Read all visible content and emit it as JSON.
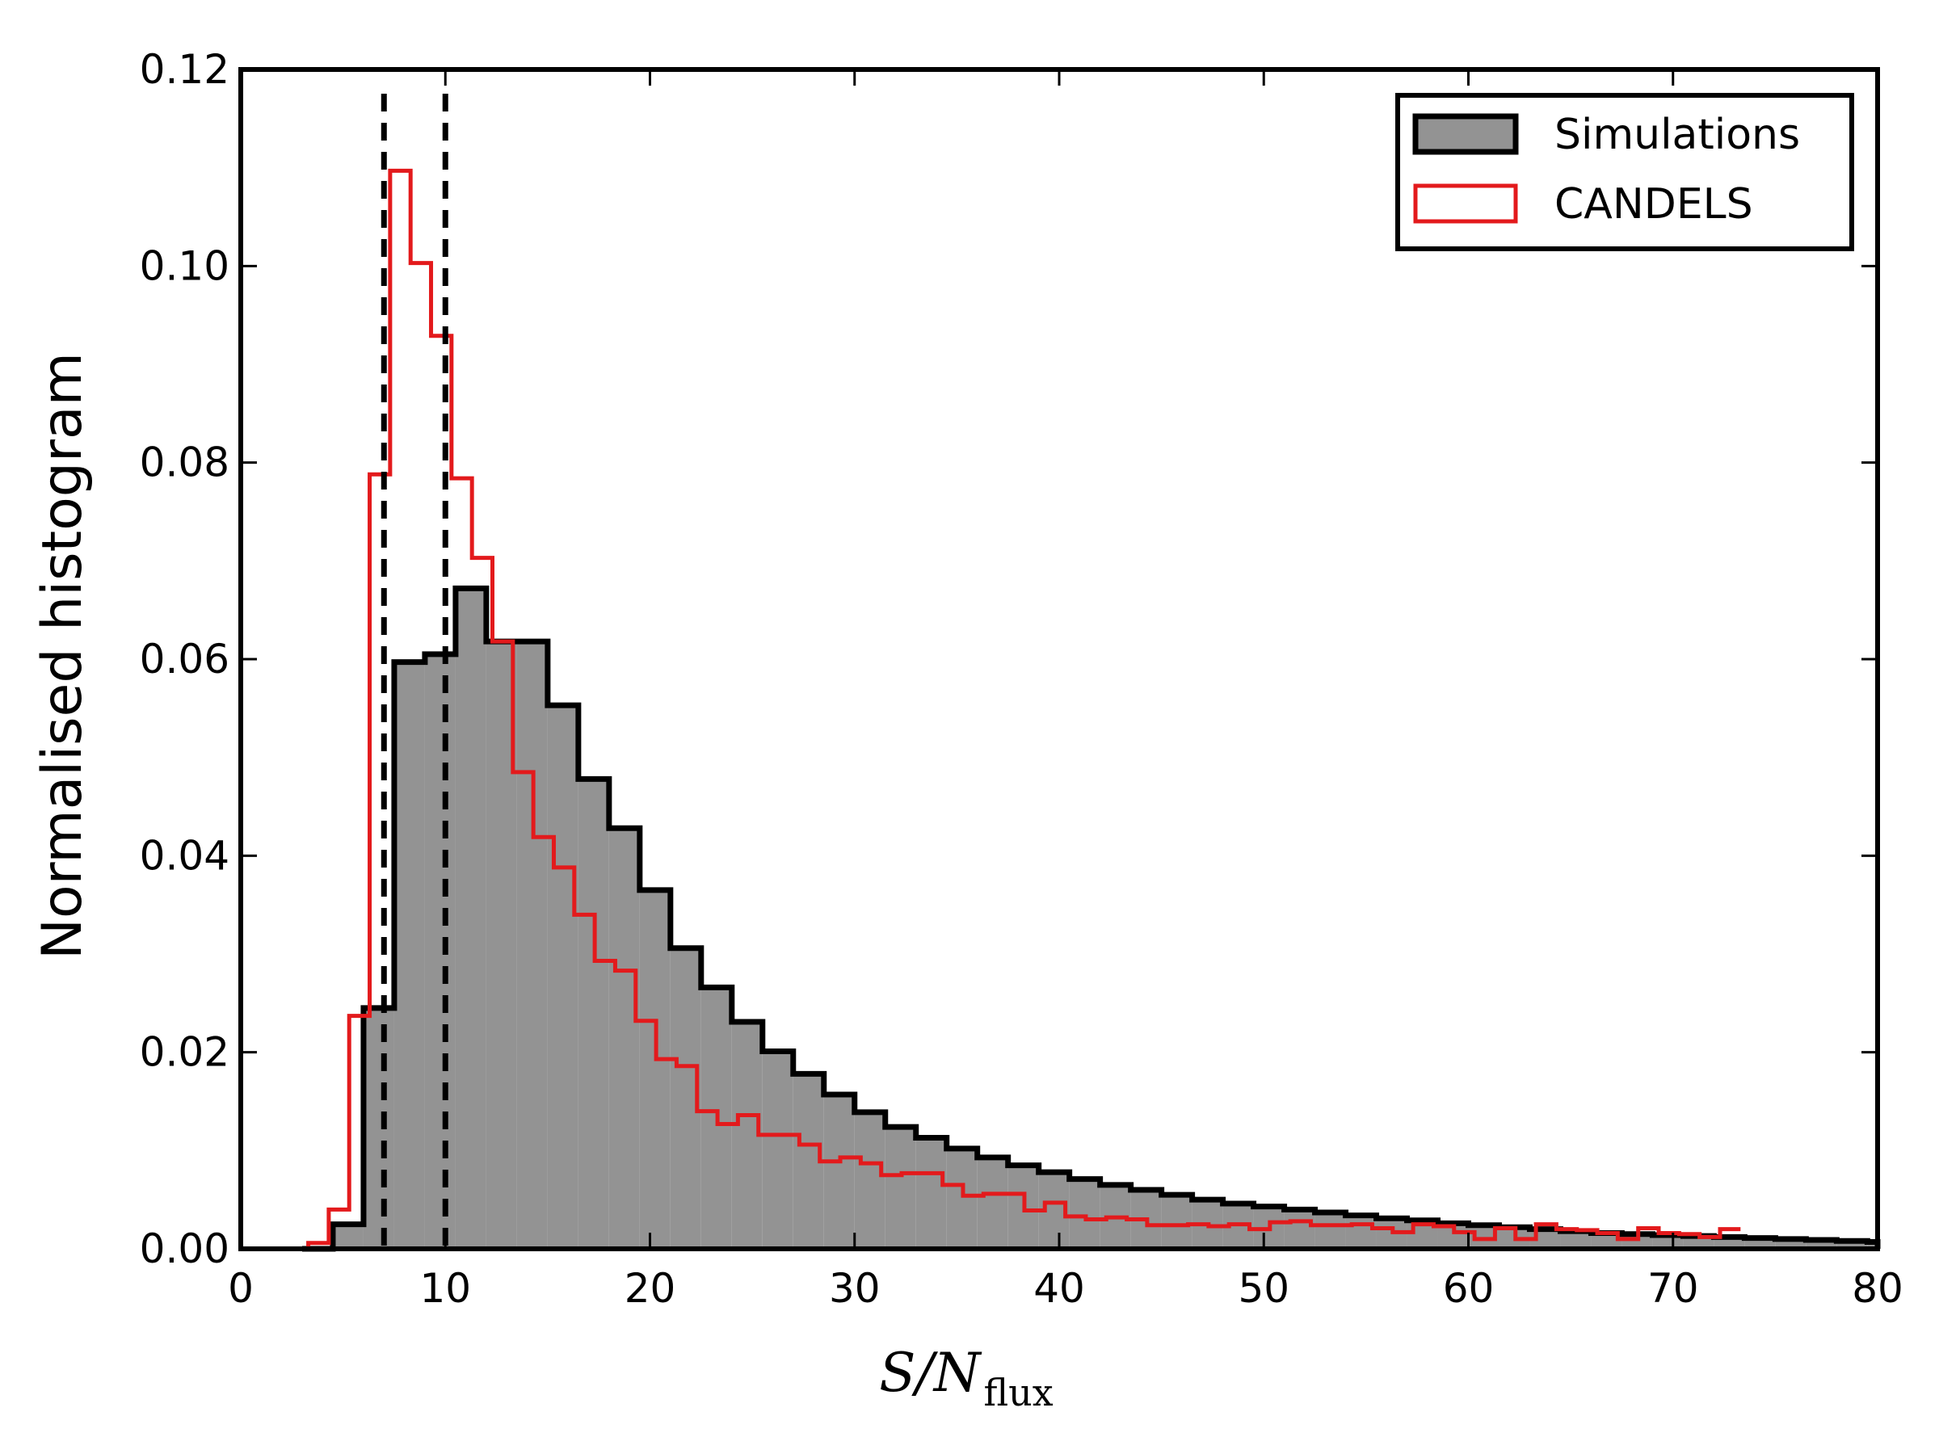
{
  "chart_data": {
    "type": "histogram",
    "title": "",
    "xlabel": {
      "main": "S/N",
      "subscript": "flux"
    },
    "ylabel": "Normalised histogram",
    "xlim": [
      0,
      80
    ],
    "ylim": [
      0,
      0.12
    ],
    "xticks": [
      0,
      10,
      20,
      30,
      40,
      50,
      60,
      70,
      80
    ],
    "xtick_labels": [
      "0",
      "10",
      "20",
      "30",
      "40",
      "50",
      "60",
      "70",
      "80"
    ],
    "yticks": [
      0,
      0.02,
      0.04,
      0.06,
      0.08,
      0.1,
      0.12
    ],
    "ytick_labels": [
      "0.00",
      "0.02",
      "0.04",
      "0.06",
      "0.08",
      "0.10",
      "0.12"
    ],
    "grid": false,
    "legend_position": "top-right",
    "vlines": [
      {
        "x": 7,
        "style": "dashed",
        "color": "#000000"
      },
      {
        "x": 10,
        "style": "dashed",
        "color": "#000000"
      }
    ],
    "series": [
      {
        "name": "Simulations",
        "style": "filled-step",
        "fill": "#939393",
        "edge": "#000000",
        "start": 3.0,
        "bin_width": 1.5,
        "values": [
          0,
          0.0025,
          0.0245,
          0.0597,
          0.0605,
          0.0672,
          0.0618,
          0.0618,
          0.0553,
          0.0478,
          0.0428,
          0.0365,
          0.0306,
          0.0266,
          0.0231,
          0.0201,
          0.0178,
          0.0157,
          0.0139,
          0.0124,
          0.0113,
          0.0102,
          0.0093,
          0.0085,
          0.0078,
          0.0071,
          0.0065,
          0.006,
          0.0055,
          0.005,
          0.0046,
          0.0043,
          0.004,
          0.0037,
          0.0034,
          0.0031,
          0.0029,
          0.0026,
          0.0024,
          0.0022,
          0.002,
          0.0018,
          0.0016,
          0.0015,
          0.0014,
          0.0013,
          0.0012,
          0.0011,
          0.001,
          0.0009,
          0.0008,
          0.0007
        ]
      },
      {
        "name": "CANDELS",
        "style": "step",
        "edge": "#e31a1c",
        "start": 3.3,
        "bin_width": 1.0,
        "values": [
          0.0006,
          0.004,
          0.0237,
          0.0788,
          0.1097,
          0.1003,
          0.0929,
          0.0784,
          0.0703,
          0.0618,
          0.0485,
          0.0419,
          0.0388,
          0.034,
          0.0293,
          0.0283,
          0.0232,
          0.0193,
          0.0186,
          0.014,
          0.0127,
          0.0136,
          0.0116,
          0.0116,
          0.0106,
          0.0089,
          0.0093,
          0.0087,
          0.0075,
          0.0077,
          0.0077,
          0.0065,
          0.0054,
          0.0056,
          0.0056,
          0.0039,
          0.0047,
          0.0033,
          0.003,
          0.0032,
          0.003,
          0.0024,
          0.0024,
          0.0025,
          0.0023,
          0.0025,
          0.002,
          0.0027,
          0.0028,
          0.0024,
          0.0024,
          0.0025,
          0.0021,
          0.0017,
          0.0025,
          0.0023,
          0.0017,
          0.001,
          0.0021,
          0.001,
          0.0025,
          0.002,
          0.0019,
          0.0016,
          0.001,
          0.0021,
          0.0016,
          0.0015,
          0.0012,
          0.002
        ]
      }
    ]
  }
}
